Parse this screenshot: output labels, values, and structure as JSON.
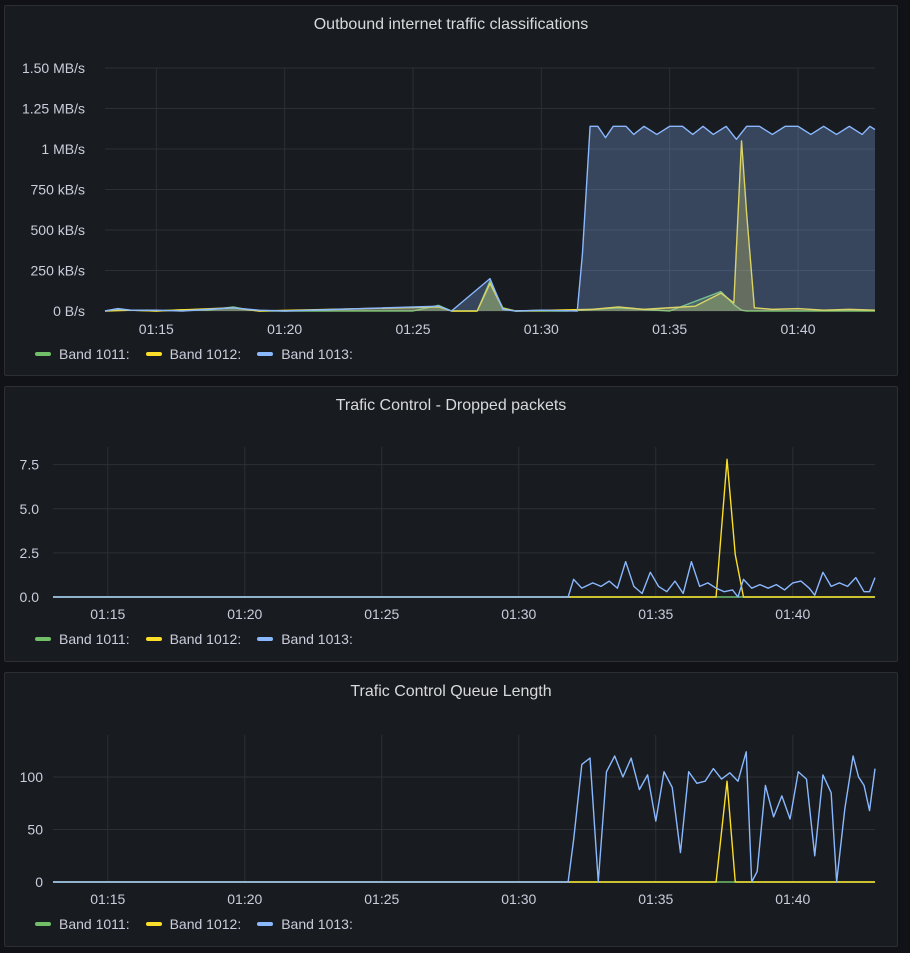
{
  "colors": {
    "band_1011": "#73bf69",
    "band_1012": "#fade2a",
    "band_1013": "#8ab8ff",
    "grid": "#2c2f35"
  },
  "panels": [
    {
      "title": "Outbound internet traffic classifications",
      "legend": [
        {
          "label": "Band 1011:",
          "color": "#73bf69"
        },
        {
          "label": "Band 1012:",
          "color": "#fade2a"
        },
        {
          "label": "Band 1013:",
          "color": "#8ab8ff"
        }
      ]
    },
    {
      "title": "Trafic Control - Dropped packets",
      "legend": [
        {
          "label": "Band 1011:",
          "color": "#73bf69"
        },
        {
          "label": "Band 1012:",
          "color": "#fade2a"
        },
        {
          "label": "Band 1013:",
          "color": "#8ab8ff"
        }
      ]
    },
    {
      "title": "Trafic Control Queue Length",
      "legend": [
        {
          "label": "Band 1011:",
          "color": "#73bf69"
        },
        {
          "label": "Band 1012:",
          "color": "#fade2a"
        },
        {
          "label": "Band 1013:",
          "color": "#8ab8ff"
        }
      ]
    }
  ],
  "chart_data": [
    {
      "type": "area",
      "title": "Outbound internet traffic classifications",
      "x_range": [
        "01:13",
        "01:43"
      ],
      "x_ticks": [
        "01:15",
        "01:20",
        "01:25",
        "01:30",
        "01:35",
        "01:40"
      ],
      "y_ticks": [
        "0 B/s",
        "250 kB/s",
        "500 kB/s",
        "750 kB/s",
        "1 MB/s",
        "1.25 MB/s",
        "1.50 MB/s"
      ],
      "ylim": [
        0,
        1500
      ],
      "y_unit": "kB/s",
      "grid": true,
      "legend_placement": "bottom-left",
      "series": [
        {
          "name": "Band 1011",
          "color": "#73bf69",
          "points": [
            [
              "01:13",
              0
            ],
            [
              "01:13.5",
              10
            ],
            [
              "01:14",
              5
            ],
            [
              "01:15",
              0
            ],
            [
              "01:16",
              8
            ],
            [
              "01:17",
              5
            ],
            [
              "01:18",
              25
            ],
            [
              "01:18.5",
              10
            ],
            [
              "01:19",
              0
            ],
            [
              "01:20",
              0
            ],
            [
              "01:25",
              0
            ],
            [
              "01:26",
              35
            ],
            [
              "01:26.5",
              0
            ],
            [
              "01:27.5",
              0
            ],
            [
              "01:28",
              185
            ],
            [
              "01:28.5",
              20
            ],
            [
              "01:29",
              0
            ],
            [
              "01:31",
              0
            ],
            [
              "01:33",
              20
            ],
            [
              "01:34",
              10
            ],
            [
              "01:35",
              0
            ],
            [
              "01:37",
              120
            ],
            [
              "01:37.5",
              40
            ],
            [
              "01:37.8",
              5
            ],
            [
              "01:38",
              0
            ],
            [
              "01:43",
              0
            ]
          ]
        },
        {
          "name": "Band 1012",
          "color": "#fade2a",
          "points": [
            [
              "01:13",
              0
            ],
            [
              "01:14",
              5
            ],
            [
              "01:15",
              0
            ],
            [
              "01:18",
              20
            ],
            [
              "01:19",
              0
            ],
            [
              "01:26",
              25
            ],
            [
              "01:26.5",
              0
            ],
            [
              "01:27.5",
              0
            ],
            [
              "01:28",
              170
            ],
            [
              "01:28.5",
              15
            ],
            [
              "01:29",
              0
            ],
            [
              "01:32",
              10
            ],
            [
              "01:33",
              25
            ],
            [
              "01:34",
              10
            ],
            [
              "01:35",
              20
            ],
            [
              "01:36",
              30
            ],
            [
              "01:37",
              110
            ],
            [
              "01:37.5",
              50
            ],
            [
              "01:37.8",
              1050
            ],
            [
              "01:38",
              600
            ],
            [
              "01:38.3",
              20
            ],
            [
              "01:39",
              10
            ],
            [
              "01:40",
              15
            ],
            [
              "01:41",
              5
            ],
            [
              "01:42",
              10
            ],
            [
              "01:43",
              5
            ]
          ]
        },
        {
          "name": "Band 1013",
          "color": "#8ab8ff",
          "points": [
            [
              "01:13",
              0
            ],
            [
              "01:13.5",
              15
            ],
            [
              "01:14",
              5
            ],
            [
              "01:15",
              5
            ],
            [
              "01:16",
              0
            ],
            [
              "01:18",
              20
            ],
            [
              "01:19",
              5
            ],
            [
              "01:20",
              0
            ],
            [
              "01:26",
              30
            ],
            [
              "01:26.5",
              0
            ],
            [
              "01:28",
              200
            ],
            [
              "01:28.5",
              10
            ],
            [
              "01:29",
              0
            ],
            [
              "01:30",
              5
            ],
            [
              "01:31.4",
              0
            ],
            [
              "01:31.6",
              350
            ],
            [
              "01:31.9",
              1140
            ],
            [
              "01:32.2",
              1140
            ],
            [
              "01:32.5",
              1070
            ],
            [
              "01:32.8",
              1140
            ],
            [
              "01:33.3",
              1140
            ],
            [
              "01:33.6",
              1090
            ],
            [
              "01:34",
              1140
            ],
            [
              "01:34.5",
              1090
            ],
            [
              "01:35",
              1140
            ],
            [
              "01:35.5",
              1140
            ],
            [
              "01:35.9",
              1090
            ],
            [
              "01:36.3",
              1140
            ],
            [
              "01:36.7",
              1090
            ],
            [
              "01:37.2",
              1140
            ],
            [
              "01:37.6",
              1060
            ],
            [
              "01:38",
              1140
            ],
            [
              "01:38.5",
              1140
            ],
            [
              "01:39",
              1090
            ],
            [
              "01:39.5",
              1140
            ],
            [
              "01:40",
              1140
            ],
            [
              "01:40.5",
              1090
            ],
            [
              "01:41",
              1140
            ],
            [
              "01:41.5",
              1090
            ],
            [
              "01:42",
              1140
            ],
            [
              "01:42.5",
              1090
            ],
            [
              "01:42.8",
              1140
            ],
            [
              "01:43",
              1120
            ]
          ]
        }
      ]
    },
    {
      "type": "line",
      "title": "Trafic Control - Dropped packets",
      "x_range": [
        "01:13",
        "01:43"
      ],
      "x_ticks": [
        "01:15",
        "01:20",
        "01:25",
        "01:30",
        "01:35",
        "01:40"
      ],
      "y_ticks": [
        "0.0",
        "2.5",
        "5.0",
        "7.5"
      ],
      "ylim": [
        0,
        8.5
      ],
      "grid": true,
      "legend_placement": "bottom-left",
      "series": [
        {
          "name": "Band 1011",
          "color": "#73bf69",
          "points": [
            [
              "01:13",
              0
            ],
            [
              "01:43",
              0
            ]
          ]
        },
        {
          "name": "Band 1012",
          "color": "#fade2a",
          "points": [
            [
              "01:13",
              0
            ],
            [
              "01:37.2",
              0
            ],
            [
              "01:37.6",
              7.8
            ],
            [
              "01:37.9",
              2.4
            ],
            [
              "01:38.2",
              0
            ],
            [
              "01:43",
              0
            ]
          ]
        },
        {
          "name": "Band 1013",
          "color": "#8ab8ff",
          "points": [
            [
              "01:13",
              0
            ],
            [
              "01:31.8",
              0
            ],
            [
              "01:32",
              1
            ],
            [
              "01:32.3",
              0.5
            ],
            [
              "01:32.7",
              0.8
            ],
            [
              "01:33",
              0.6
            ],
            [
              "01:33.3",
              0.9
            ],
            [
              "01:33.6",
              0.5
            ],
            [
              "01:33.9",
              2.0
            ],
            [
              "01:34.2",
              0.6
            ],
            [
              "01:34.5",
              0.2
            ],
            [
              "01:34.8",
              1.4
            ],
            [
              "01:35.1",
              0.6
            ],
            [
              "01:35.4",
              0.3
            ],
            [
              "01:35.7",
              0.9
            ],
            [
              "01:36",
              0.2
            ],
            [
              "01:36.3",
              2.0
            ],
            [
              "01:36.6",
              0.6
            ],
            [
              "01:36.9",
              0.8
            ],
            [
              "01:37.2",
              0.5
            ],
            [
              "01:37.5",
              0.3
            ],
            [
              "01:37.8",
              0.4
            ],
            [
              "01:38",
              0
            ],
            [
              "01:38.2",
              1.0
            ],
            [
              "01:38.5",
              0.5
            ],
            [
              "01:38.8",
              0.7
            ],
            [
              "01:39.1",
              0.5
            ],
            [
              "01:39.4",
              0.7
            ],
            [
              "01:39.7",
              0.4
            ],
            [
              "01:40",
              0.8
            ],
            [
              "01:40.3",
              0.9
            ],
            [
              "01:40.6",
              0.5
            ],
            [
              "01:40.8",
              0.1
            ],
            [
              "01:41.1",
              1.4
            ],
            [
              "01:41.4",
              0.6
            ],
            [
              "01:41.7",
              0.8
            ],
            [
              "01:42",
              0.6
            ],
            [
              "01:42.3",
              1.1
            ],
            [
              "01:42.6",
              0.3
            ],
            [
              "01:42.8",
              0.3
            ],
            [
              "01:43",
              1.1
            ]
          ]
        }
      ]
    },
    {
      "type": "line",
      "title": "Trafic Control Queue Length",
      "x_range": [
        "01:13",
        "01:43"
      ],
      "x_ticks": [
        "01:15",
        "01:20",
        "01:25",
        "01:30",
        "01:35",
        "01:40"
      ],
      "y_ticks": [
        "0",
        "50",
        "100"
      ],
      "ylim": [
        0,
        140
      ],
      "grid": true,
      "legend_placement": "bottom-left",
      "series": [
        {
          "name": "Band 1011",
          "color": "#73bf69",
          "points": [
            [
              "01:13",
              0
            ],
            [
              "01:43",
              0
            ]
          ]
        },
        {
          "name": "Band 1012",
          "color": "#fade2a",
          "points": [
            [
              "01:13",
              0
            ],
            [
              "01:37.2",
              0
            ],
            [
              "01:37.6",
              96
            ],
            [
              "01:37.9",
              0
            ],
            [
              "01:43",
              0
            ]
          ]
        },
        {
          "name": "Band 1013",
          "color": "#8ab8ff",
          "points": [
            [
              "01:13",
              0
            ],
            [
              "01:31.8",
              0
            ],
            [
              "01:32",
              40
            ],
            [
              "01:32.3",
              112
            ],
            [
              "01:32.6",
              118
            ],
            [
              "01:32.9",
              0
            ],
            [
              "01:33.2",
              105
            ],
            [
              "01:33.5",
              120
            ],
            [
              "01:33.8",
              100
            ],
            [
              "01:34.1",
              118
            ],
            [
              "01:34.4",
              88
            ],
            [
              "01:34.7",
              102
            ],
            [
              "01:35",
              58
            ],
            [
              "01:35.3",
              105
            ],
            [
              "01:35.6",
              90
            ],
            [
              "01:35.9",
              28
            ],
            [
              "01:36.2",
              105
            ],
            [
              "01:36.5",
              94
            ],
            [
              "01:36.8",
              96
            ],
            [
              "01:37.1",
              108
            ],
            [
              "01:37.4",
              98
            ],
            [
              "01:37.7",
              104
            ],
            [
              "01:38",
              96
            ],
            [
              "01:38.3",
              124
            ],
            [
              "01:38.5",
              0
            ],
            [
              "01:38.7",
              10
            ],
            [
              "01:39",
              92
            ],
            [
              "01:39.3",
              62
            ],
            [
              "01:39.6",
              82
            ],
            [
              "01:39.9",
              60
            ],
            [
              "01:40.2",
              105
            ],
            [
              "01:40.5",
              98
            ],
            [
              "01:40.8",
              25
            ],
            [
              "01:41.1",
              102
            ],
            [
              "01:41.4",
              85
            ],
            [
              "01:41.6",
              0
            ],
            [
              "01:41.9",
              70
            ],
            [
              "01:42.2",
              120
            ],
            [
              "01:42.4",
              100
            ],
            [
              "01:42.6",
              92
            ],
            [
              "01:42.8",
              68
            ],
            [
              "01:43",
              108
            ]
          ]
        }
      ]
    }
  ]
}
